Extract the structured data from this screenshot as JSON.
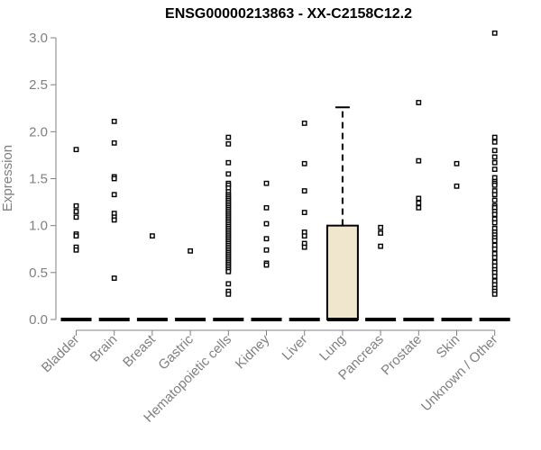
{
  "chart_data": {
    "type": "box",
    "title": "ENSG00000213863 - XX-C2158C12.2",
    "xlabel": "",
    "ylabel": "Expression",
    "ylim": [
      0,
      3.0
    ],
    "yticks": [
      "0.0",
      "0.5",
      "1.0",
      "1.5",
      "2.0",
      "2.5",
      "3.0"
    ],
    "categories": [
      "Bladder",
      "Brain",
      "Breast",
      "Gastric",
      "Hematopoietic cells",
      "Kidney",
      "Liver",
      "Lung",
      "Pancreas",
      "Prostate",
      "Skin",
      "Unknown / Other"
    ],
    "box_fill": "#efe6cd",
    "series": [
      {
        "category": "Bladder",
        "box": [
          0,
          0,
          0,
          0,
          0
        ],
        "outliers": [
          1.81,
          1.21,
          1.15,
          1.09,
          0.91,
          0.89,
          0.77,
          0.74
        ]
      },
      {
        "category": "Brain",
        "box": [
          0,
          0,
          0,
          0,
          0
        ],
        "outliers": [
          2.11,
          1.88,
          1.52,
          1.5,
          1.33,
          1.13,
          1.09,
          1.06,
          0.44
        ]
      },
      {
        "category": "Breast",
        "box": [
          0,
          0,
          0,
          0,
          0
        ],
        "outliers": [
          0.89
        ]
      },
      {
        "category": "Gastric",
        "box": [
          0,
          0,
          0,
          0,
          0
        ],
        "outliers": [
          0.73
        ]
      },
      {
        "category": "Hematopoietic cells",
        "box": [
          0,
          0,
          0,
          0,
          0
        ],
        "outliers": [
          1.94,
          1.87,
          1.67,
          1.55,
          1.45,
          1.43,
          1.4,
          1.36,
          1.33,
          1.31,
          1.29,
          1.27,
          1.25,
          1.23,
          1.21,
          1.19,
          1.17,
          1.15,
          1.13,
          1.11,
          1.09,
          1.07,
          1.05,
          1.03,
          1.01,
          0.99,
          0.97,
          0.95,
          0.93,
          0.91,
          0.89,
          0.87,
          0.85,
          0.83,
          0.81,
          0.79,
          0.77,
          0.75,
          0.73,
          0.71,
          0.69,
          0.67,
          0.65,
          0.63,
          0.61,
          0.59,
          0.57,
          0.55,
          0.53,
          0.51,
          0.38,
          0.3,
          0.27
        ]
      },
      {
        "category": "Kidney",
        "box": [
          0,
          0,
          0,
          0,
          0
        ],
        "outliers": [
          1.45,
          1.19,
          1.02,
          0.86,
          0.74,
          0.6,
          0.58
        ]
      },
      {
        "category": "Liver",
        "box": [
          0,
          0,
          0,
          0,
          0
        ],
        "outliers": [
          2.09,
          1.66,
          1.37,
          1.14,
          0.93,
          0.89,
          0.81,
          0.77
        ]
      },
      {
        "category": "Lung",
        "box": [
          0,
          0,
          0,
          1.0,
          2.26
        ],
        "outliers": []
      },
      {
        "category": "Pancreas",
        "box": [
          0,
          0,
          0,
          0,
          0
        ],
        "outliers": [
          0.98,
          0.92,
          0.78
        ]
      },
      {
        "category": "Prostate",
        "box": [
          0,
          0,
          0,
          0,
          0
        ],
        "outliers": [
          2.31,
          1.69,
          1.29,
          1.24,
          1.19
        ]
      },
      {
        "category": "Skin",
        "box": [
          0,
          0,
          0,
          0,
          0
        ],
        "outliers": [
          1.66,
          1.42
        ]
      },
      {
        "category": "Unknown / Other",
        "box": [
          0,
          0,
          0,
          0,
          0
        ],
        "outliers": [
          3.05,
          1.94,
          1.89,
          1.8,
          1.73,
          1.67,
          1.6,
          1.51,
          1.47,
          1.45,
          1.43,
          1.37,
          1.33,
          1.27,
          1.21,
          1.19,
          1.15,
          1.12,
          1.07,
          1.03,
          0.97,
          0.93,
          0.9,
          0.87,
          0.84,
          0.79,
          0.75,
          0.7,
          0.66,
          0.61,
          0.57,
          0.53,
          0.5,
          0.46,
          0.41,
          0.37,
          0.33,
          0.3,
          0.27
        ]
      }
    ]
  }
}
